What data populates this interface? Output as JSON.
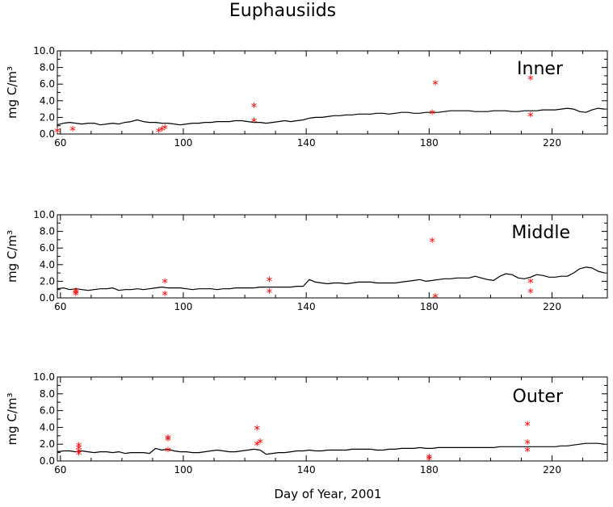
{
  "chart_data": {
    "type": "line",
    "title": "Euphausiids",
    "xlabel": "Day of Year, 2001",
    "xlim": [
      59,
      238
    ],
    "x_ticks": [
      60,
      100,
      140,
      180,
      220
    ],
    "grid": false,
    "line_color": "#000000",
    "marker_color": "#ff0000",
    "marker": "*",
    "panels": [
      {
        "label": "Inner",
        "ylabel": "mg C/m³",
        "ylim": [
          0,
          10
        ],
        "y_ticks": [
          "0.0",
          "2.0",
          "4.0",
          "6.0",
          "8.0",
          "10.0"
        ],
        "series": [
          {
            "kind": "line",
            "x": [
              59,
              61,
              63,
              65,
              67,
              69,
              71,
              73,
              75,
              77,
              79,
              81,
              83,
              85,
              87,
              89,
              91,
              93,
              95,
              97,
              99,
              101,
              103,
              105,
              107,
              109,
              111,
              113,
              115,
              117,
              119,
              121,
              123,
              125,
              127,
              129,
              131,
              133,
              135,
              137,
              139,
              141,
              143,
              145,
              147,
              149,
              151,
              153,
              155,
              157,
              159,
              161,
              163,
              165,
              167,
              169,
              171,
              173,
              175,
              177,
              179,
              181,
              183,
              185,
              187,
              189,
              191,
              193,
              195,
              197,
              199,
              201,
              203,
              205,
              207,
              209,
              211,
              213,
              215,
              217,
              219,
              221,
              223,
              225,
              227,
              229,
              231,
              233,
              235,
              237
            ],
            "y": [
              1.1,
              1.3,
              1.4,
              1.3,
              1.2,
              1.3,
              1.3,
              1.1,
              1.2,
              1.3,
              1.2,
              1.4,
              1.5,
              1.7,
              1.5,
              1.4,
              1.4,
              1.3,
              1.3,
              1.2,
              1.1,
              1.2,
              1.3,
              1.3,
              1.4,
              1.4,
              1.5,
              1.5,
              1.5,
              1.6,
              1.6,
              1.5,
              1.4,
              1.4,
              1.3,
              1.4,
              1.5,
              1.6,
              1.5,
              1.6,
              1.7,
              1.9,
              2.0,
              2.0,
              2.1,
              2.2,
              2.2,
              2.3,
              2.3,
              2.4,
              2.4,
              2.4,
              2.5,
              2.5,
              2.4,
              2.5,
              2.6,
              2.6,
              2.5,
              2.5,
              2.6,
              2.6,
              2.6,
              2.7,
              2.8,
              2.8,
              2.8,
              2.8,
              2.7,
              2.7,
              2.7,
              2.8,
              2.8,
              2.8,
              2.7,
              2.7,
              2.8,
              2.8,
              2.8,
              2.9,
              2.9,
              2.9,
              3.0,
              3.1,
              3.0,
              2.7,
              2.6,
              2.9,
              3.1,
              3.0
            ]
          },
          {
            "kind": "scatter",
            "points": [
              [
                59,
                0.3
              ],
              [
                64,
                0.5
              ],
              [
                92,
                0.3
              ],
              [
                93,
                0.5
              ],
              [
                94,
                0.7
              ],
              [
                123,
                3.3
              ],
              [
                123,
                1.5
              ],
              [
                181,
                2.5
              ],
              [
                182,
                6.0
              ],
              [
                213,
                6.6
              ],
              [
                213,
                2.2
              ]
            ]
          }
        ]
      },
      {
        "label": "Middle",
        "ylabel": "mg C/m³",
        "ylim": [
          0,
          10
        ],
        "y_ticks": [
          "0.0",
          "2.0",
          "4.0",
          "6.0",
          "8.0",
          "10.0"
        ],
        "series": [
          {
            "kind": "line",
            "x": [
              59,
              61,
              63,
              65,
              67,
              69,
              71,
              73,
              75,
              77,
              79,
              81,
              83,
              85,
              87,
              89,
              91,
              93,
              95,
              97,
              99,
              101,
              103,
              105,
              107,
              109,
              111,
              113,
              115,
              117,
              119,
              121,
              123,
              125,
              127,
              129,
              131,
              133,
              135,
              137,
              139,
              141,
              143,
              145,
              147,
              149,
              151,
              153,
              155,
              157,
              159,
              161,
              163,
              165,
              167,
              169,
              171,
              173,
              175,
              177,
              179,
              181,
              183,
              185,
              187,
              189,
              191,
              193,
              195,
              197,
              199,
              201,
              203,
              205,
              207,
              209,
              211,
              213,
              215,
              217,
              219,
              221,
              223,
              225,
              227,
              229,
              231,
              233,
              235,
              237
            ],
            "y": [
              1.1,
              1.2,
              1.0,
              1.1,
              1.0,
              0.9,
              1.0,
              1.1,
              1.1,
              1.2,
              0.9,
              1.0,
              1.0,
              1.1,
              1.0,
              1.1,
              1.2,
              1.3,
              1.2,
              1.2,
              1.2,
              1.1,
              1.0,
              1.1,
              1.1,
              1.1,
              1.0,
              1.1,
              1.1,
              1.2,
              1.2,
              1.2,
              1.2,
              1.3,
              1.3,
              1.3,
              1.3,
              1.3,
              1.3,
              1.4,
              1.4,
              2.2,
              1.9,
              1.8,
              1.7,
              1.8,
              1.8,
              1.7,
              1.8,
              1.9,
              1.9,
              1.9,
              1.8,
              1.8,
              1.8,
              1.8,
              1.9,
              2.0,
              2.1,
              2.2,
              2.0,
              2.1,
              2.2,
              2.3,
              2.3,
              2.4,
              2.4,
              2.4,
              2.6,
              2.4,
              2.2,
              2.1,
              2.6,
              2.9,
              2.8,
              2.4,
              2.3,
              2.5,
              2.8,
              2.7,
              2.5,
              2.5,
              2.6,
              2.6,
              3.0,
              3.5,
              3.7,
              3.6,
              3.2,
              3.0
            ]
          },
          {
            "kind": "scatter",
            "points": [
              [
                65,
                0.4
              ],
              [
                65,
                0.6
              ],
              [
                65,
                0.8
              ],
              [
                94,
                0.4
              ],
              [
                94,
                1.9
              ],
              [
                128,
                0.7
              ],
              [
                128,
                2.1
              ],
              [
                181,
                6.8
              ],
              [
                182,
                0.1
              ],
              [
                213,
                0.7
              ],
              [
                213,
                1.9
              ]
            ]
          }
        ]
      },
      {
        "label": "Outer",
        "ylabel": "mg C/m³",
        "ylim": [
          0,
          10
        ],
        "y_ticks": [
          "0.0",
          "2.0",
          "4.0",
          "6.0",
          "8.0",
          "10.0"
        ],
        "series": [
          {
            "kind": "line",
            "x": [
              59,
              61,
              63,
              65,
              67,
              69,
              71,
              73,
              75,
              77,
              79,
              81,
              83,
              85,
              87,
              89,
              91,
              93,
              95,
              97,
              99,
              101,
              103,
              105,
              107,
              109,
              111,
              113,
              115,
              117,
              119,
              121,
              123,
              125,
              127,
              129,
              131,
              133,
              135,
              137,
              139,
              141,
              143,
              145,
              147,
              149,
              151,
              153,
              155,
              157,
              159,
              161,
              163,
              165,
              167,
              169,
              171,
              173,
              175,
              177,
              179,
              181,
              183,
              185,
              187,
              189,
              191,
              193,
              195,
              197,
              199,
              201,
              203,
              205,
              207,
              209,
              211,
              213,
              215,
              217,
              219,
              221,
              223,
              225,
              227,
              229,
              231,
              233,
              235,
              237
            ],
            "y": [
              1.1,
              1.2,
              1.2,
              1.1,
              1.2,
              1.1,
              1.0,
              1.1,
              1.1,
              1.0,
              1.1,
              0.9,
              1.0,
              1.0,
              1.0,
              0.9,
              1.5,
              1.3,
              1.4,
              1.2,
              1.1,
              1.1,
              1.0,
              1.0,
              1.1,
              1.2,
              1.3,
              1.2,
              1.1,
              1.1,
              1.2,
              1.3,
              1.4,
              1.3,
              0.8,
              0.9,
              1.0,
              1.0,
              1.1,
              1.2,
              1.2,
              1.3,
              1.2,
              1.2,
              1.3,
              1.3,
              1.3,
              1.3,
              1.4,
              1.4,
              1.4,
              1.4,
              1.3,
              1.3,
              1.4,
              1.4,
              1.5,
              1.5,
              1.5,
              1.6,
              1.5,
              1.5,
              1.6,
              1.6,
              1.6,
              1.6,
              1.6,
              1.6,
              1.6,
              1.6,
              1.6,
              1.6,
              1.7,
              1.7,
              1.7,
              1.7,
              1.7,
              1.7,
              1.7,
              1.7,
              1.7,
              1.7,
              1.8,
              1.8,
              1.9,
              2.0,
              2.1,
              2.1,
              2.1,
              2.0
            ]
          },
          {
            "kind": "scatter",
            "points": [
              [
                66,
                0.8
              ],
              [
                66,
                1.1
              ],
              [
                66,
                1.5
              ],
              [
                66,
                1.8
              ],
              [
                95,
                1.2
              ],
              [
                95,
                2.5
              ],
              [
                95,
                2.7
              ],
              [
                124,
                1.9
              ],
              [
                124,
                3.8
              ],
              [
                125,
                2.2
              ],
              [
                180,
                0.2
              ],
              [
                180,
                0.4
              ],
              [
                212,
                1.2
              ],
              [
                212,
                2.1
              ],
              [
                212,
                4.3
              ]
            ]
          }
        ]
      }
    ]
  }
}
